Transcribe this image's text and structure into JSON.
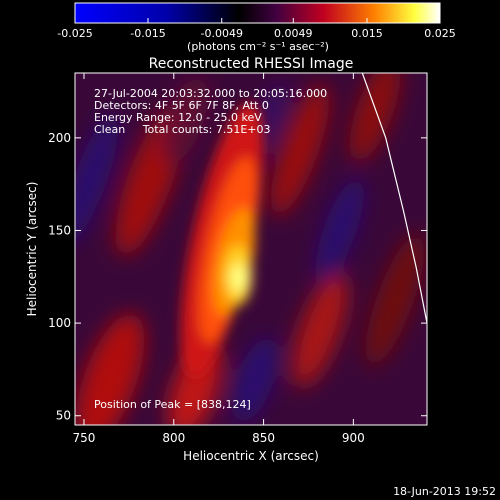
{
  "chart_data": {
    "type": "heatmap",
    "title": "Reconstructed RHESSI Image",
    "xlabel": "Heliocentric X (arcsec)",
    "ylabel": "Heliocentric Y (arcsec)",
    "xlim": [
      745,
      941
    ],
    "ylim": [
      45,
      235
    ],
    "x_ticks": [
      750,
      800,
      850,
      900
    ],
    "y_ticks": [
      50,
      100,
      150,
      200
    ],
    "colorbar": {
      "range": [
        -0.025,
        0.025
      ],
      "ticks": [
        "-0.025",
        "-0.015",
        "-0.0049",
        "0.0049",
        "0.015",
        "0.025"
      ],
      "tick_values": [
        -0.025,
        -0.015,
        -0.0049,
        0.0049,
        0.015,
        0.025
      ],
      "label": "(photons cm⁻² s⁻¹ asec⁻²)",
      "colors": [
        "#0000ff",
        "#000000",
        "#ff0000",
        "#ffff00",
        "#ffffff"
      ]
    },
    "annotations": [
      "27-Jul-2004 20:03:32.000 to 20:05:16.000",
      "Detectors: 4F 5F 6F 7F 8F, Att 0",
      "Energy Range: 12.0 - 25.0 keV",
      "Clean     Total counts: 7.51E+03"
    ],
    "peak": {
      "label": "Position of Peak = [838,124]",
      "x": 838,
      "y": 124
    },
    "limb_curve": [
      [
        905,
        235
      ],
      [
        918,
        200
      ],
      [
        928,
        160
      ],
      [
        935,
        130
      ],
      [
        941,
        100
      ]
    ],
    "footer": "18-Jun-2013 19:52"
  }
}
